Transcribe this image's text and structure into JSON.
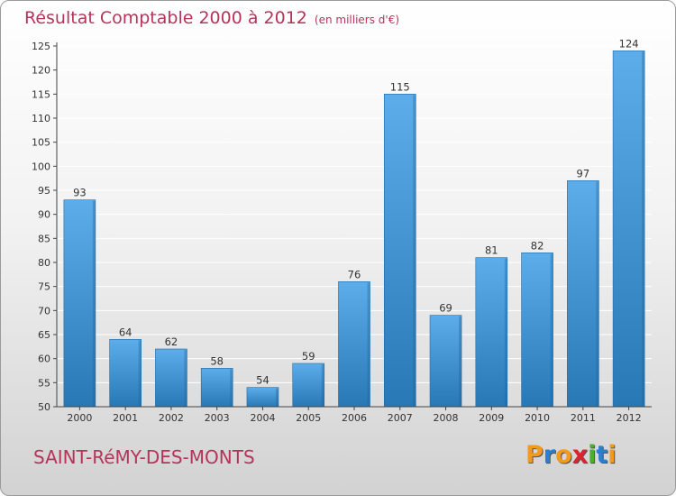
{
  "page": {
    "title": "Résultat Comptable 2000 à 2012",
    "subtitle": "(en milliers d'€)",
    "place": "SAINT-RéMY-DES-MONTS",
    "logo_letters": [
      "P",
      "r",
      "o",
      "x",
      "i",
      "t",
      "i"
    ],
    "logo_colors": [
      "#f39a1e",
      "#2a7fd0",
      "#f39a1e",
      "#d8262e",
      "#4caf2a",
      "#2a7fd0",
      "#f39a1e"
    ]
  },
  "colors": {
    "title": "#b5345a",
    "bar_top": "#5dadea",
    "bar_bottom": "#2878b6",
    "axis": "#444444",
    "grid": "#ffffff"
  },
  "chart_data": {
    "type": "bar",
    "title": "Résultat Comptable 2000 à 2012",
    "subtitle": "(en milliers d'€)",
    "xlabel": "",
    "ylabel": "",
    "categories": [
      "2000",
      "2001",
      "2002",
      "2003",
      "2004",
      "2005",
      "2006",
      "2007",
      "2008",
      "2009",
      "2010",
      "2011",
      "2012"
    ],
    "values": [
      93,
      64,
      62,
      58,
      54,
      59,
      76,
      115,
      69,
      81,
      82,
      97,
      124
    ],
    "ylim": [
      50,
      125
    ],
    "yticks": [
      50,
      55,
      60,
      65,
      70,
      75,
      80,
      85,
      90,
      95,
      100,
      105,
      110,
      115,
      120,
      125
    ],
    "grid": true,
    "data_labels": true
  }
}
